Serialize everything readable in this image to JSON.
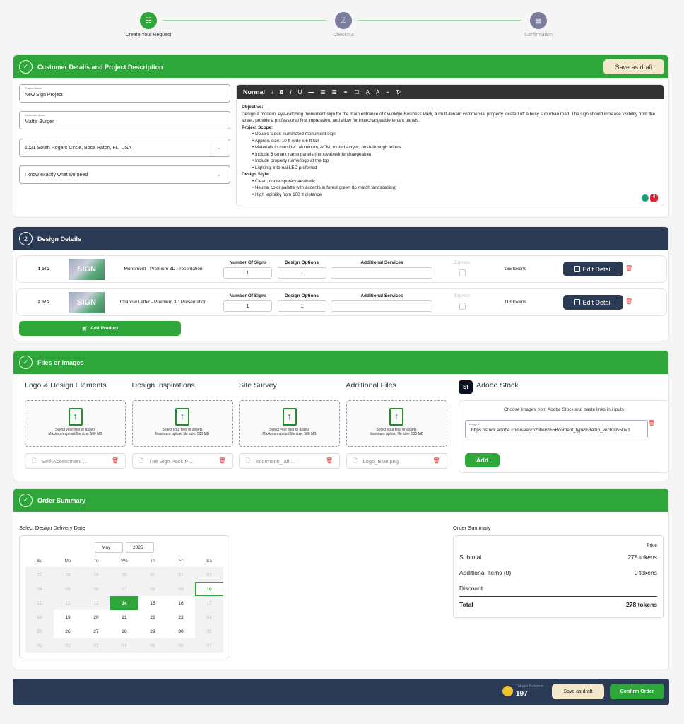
{
  "stepper": [
    {
      "label": "Create Your Request",
      "icon": "sliders-icon",
      "active": true
    },
    {
      "label": "Checkout",
      "icon": "checklist-icon",
      "active": false
    },
    {
      "label": "Confirmation",
      "icon": "receipt-icon",
      "active": false
    }
  ],
  "colors": {
    "green": "#2ea63a",
    "navy": "#2b3a55",
    "draft": "#f3e8cc"
  },
  "customer": {
    "title": "Customer Details and Project Description",
    "save_draft": "Save as draft",
    "project_name_label": "Project Name",
    "project_name": "New Sign Project",
    "customer_name_label": "Customer Name",
    "customer_name": "Matt's Burger",
    "address": "1021 South Rogers Circle, Boca Raton, FL, USA",
    "need": "I know exactly what we need",
    "editor": {
      "format": "Normal",
      "objective_h": "Objective:",
      "objective_a": " Design a modern, eye-catching monument sign for the main entrance of ",
      "objective_em": "Oakridge Business Park",
      "objective_b": ", a multi-tenant commercial property located off a busy suburban road. The sign should increase visibility from the street, provide a professional first impression, and allow for interchangeable tenant panels.",
      "scope_h": "Project Scope:",
      "scope": [
        "Double-sided illuminated monument sign",
        "Approx. size: 10 ft wide x 6 ft tall",
        "Materials to consider: aluminum, ACM, routed acrylic, push-through letters",
        "Include 6 tenant name panels (removable/interchangeable)",
        "Include property name/logo at the top",
        "Lighting: internal LED preferred"
      ],
      "style_h": "Design Style:",
      "style": [
        "Clean, contemporary aesthetic",
        "Neutral color palette with accents in forest green (to match landscaping)",
        "High legibility from 100 ft distance"
      ],
      "badge_count": "4"
    }
  },
  "design": {
    "step": "2",
    "title": "Design Details",
    "add_product": "Add Product",
    "labels": {
      "signs": "Number Of Signs",
      "options": "Design Options",
      "services": "Additional Services",
      "express": "Express",
      "edit": "Edit Detail"
    },
    "rows": [
      {
        "index": "1 of 2",
        "thumb": "SIGN",
        "name": "Monument - Premium 3D Presentation",
        "signs": "1",
        "options": "1",
        "services": "",
        "express": false,
        "tokens": "165 tokens"
      },
      {
        "index": "2 of 2",
        "thumb": "SIGN",
        "name": "Channel Letter - Premium 3D Presentation",
        "signs": "1",
        "options": "1",
        "services": "",
        "express": false,
        "tokens": "113 tokens"
      }
    ]
  },
  "files": {
    "title": "Files or Images",
    "drop_line1": "Select your files or assets",
    "drop_line2": "Maximum upload file size: 500 MB",
    "columns": [
      {
        "title": "Logo & Design Elements",
        "file": "Self-Assessment ..."
      },
      {
        "title": "Design Inspirations",
        "file": "The Sign Pack P ..."
      },
      {
        "title": "Site Survey",
        "file": "Informatie_ all ..."
      },
      {
        "title": "Additional Files",
        "file": "Logo_Blue.png"
      }
    ],
    "adobe": {
      "logo": "St",
      "title": "Adobe Stock",
      "hint": "Choose Images from Adobe Stock and paste links in inputs",
      "input_label": "Image 1",
      "input_value": "https://stock.adobe.com/search?filters%5Bcontent_type%3Azip_vector%5D=1",
      "add": "Add"
    }
  },
  "order": {
    "title": "Order Summary",
    "date_label": "Select Design Delivery Date",
    "month": "May",
    "year": "2025",
    "weekdays": [
      "Su",
      "Mo",
      "Tu",
      "We",
      "Th",
      "Fr",
      "Sa"
    ],
    "days": [
      [
        "27",
        "28",
        "29",
        "30",
        "01",
        "02",
        "03"
      ],
      [
        "04",
        "05",
        "06",
        "07",
        "08",
        "09",
        "10"
      ],
      [
        "11",
        "12",
        "13",
        "14",
        "15",
        "16",
        "17"
      ],
      [
        "18",
        "19",
        "20",
        "21",
        "22",
        "23",
        "24"
      ],
      [
        "25",
        "26",
        "27",
        "28",
        "29",
        "30",
        "31"
      ],
      [
        "01",
        "02",
        "03",
        "04",
        "05",
        "06",
        "07"
      ]
    ],
    "selected_date": "14",
    "today": "10",
    "summary_title": "Order Summary",
    "price_h": "Price",
    "subtotal_l": "Subtotal",
    "subtotal": "278 tokens",
    "additional_l": "Additional Items (0)",
    "additional": "0 tokens",
    "discount_l": "Discount",
    "discount": "",
    "total_l": "Total",
    "total": "278 tokens"
  },
  "footer": {
    "balance_label": "Tokens Balance",
    "balance": "197",
    "save_draft": "Save as draft",
    "confirm": "Confirm Order"
  }
}
